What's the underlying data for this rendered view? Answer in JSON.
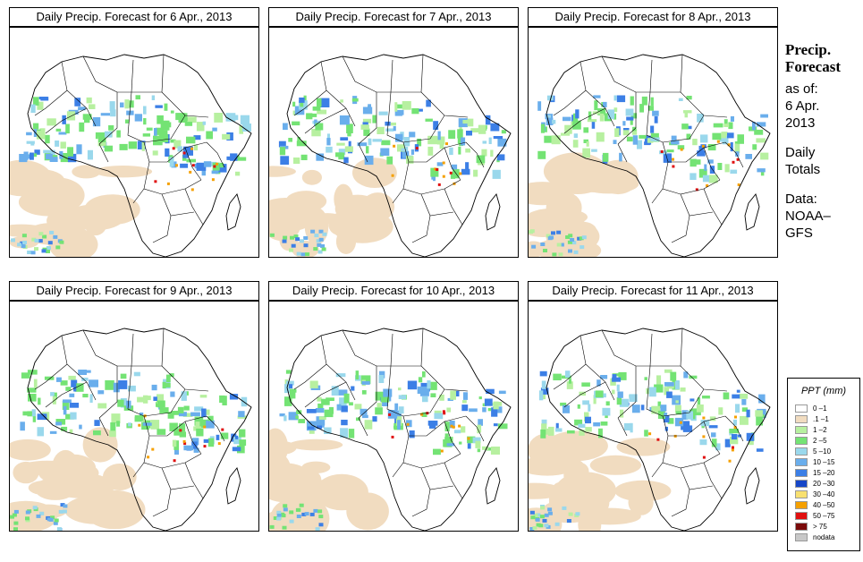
{
  "panels": [
    {
      "title": "Daily Precip. Forecast for  6 Apr., 2013"
    },
    {
      "title": "Daily Precip. Forecast for  7 Apr., 2013"
    },
    {
      "title": "Daily Precip. Forecast for  8 Apr., 2013"
    },
    {
      "title": "Daily Precip. Forecast for  9 Apr., 2013"
    },
    {
      "title": "Daily Precip. Forecast for  10 Apr., 2013"
    },
    {
      "title": "Daily Precip. Forecast for  11 Apr., 2013"
    }
  ],
  "side": {
    "title_line1": "Precip.",
    "title_line2": "Forecast",
    "asof": "as of:",
    "date_line1": "6 Apr.",
    "date_line2": "2013",
    "daily1": "Daily",
    "daily2": "Totals",
    "data1": "Data:",
    "data2": "NOAA–",
    "data3": "GFS"
  },
  "legend": {
    "title": "PPT (mm)",
    "items": [
      {
        "label": "0 –1",
        "color": "#ffffff"
      },
      {
        "label": ".1 –1",
        "color": "#f1dcc0"
      },
      {
        "label": "1 –2",
        "color": "#b7f0a0"
      },
      {
        "label": "2 –5",
        "color": "#74e374"
      },
      {
        "label": "5 –10",
        "color": "#9ad8ec"
      },
      {
        "label": "10 –15",
        "color": "#6aaeec"
      },
      {
        "label": "15 –20",
        "color": "#3c7fe6"
      },
      {
        "label": "20 –30",
        "color": "#1646c8"
      },
      {
        "label": "30 –40",
        "color": "#f8e070"
      },
      {
        "label": "40 –50",
        "color": "#f5a000"
      },
      {
        "label": "50 –75",
        "color": "#e01010"
      },
      {
        "label": "> 75",
        "color": "#7a0a0a"
      },
      {
        "label": "nodata",
        "color": "#c8c8c8"
      }
    ]
  }
}
